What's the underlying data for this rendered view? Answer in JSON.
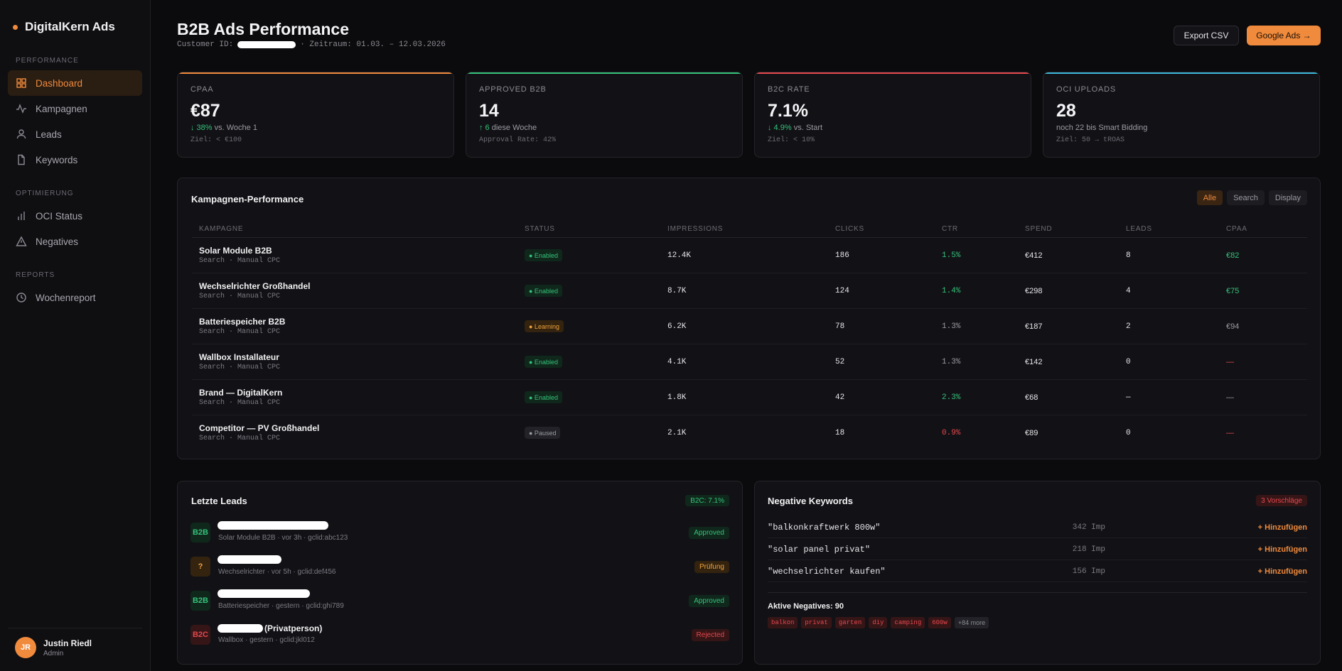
{
  "sidebar": {
    "brand": "DigitalKern Ads",
    "sections": [
      {
        "title": "PERFORMANCE",
        "items": [
          "Dashboard",
          "Kampagnen",
          "Leads",
          "Keywords"
        ]
      },
      {
        "title": "OPTIMIERUNG",
        "items": [
          "OCI Status",
          "Negatives"
        ]
      },
      {
        "title": "REPORTS",
        "items": [
          "Wochenreport"
        ]
      }
    ],
    "active_item": "Dashboard",
    "user": {
      "initials": "JR",
      "name": "Justin Riedl",
      "role": "Admin"
    }
  },
  "header": {
    "title": "B2B Ads Performance",
    "customer_label": "Customer ID:",
    "period": "· Zeitraum: 01.03. – 12.03.2026",
    "export_label": "Export CSV",
    "google_label": "Google Ads →"
  },
  "kpis": [
    {
      "label": "CPAA",
      "value": "€87",
      "delta_arrow": "↓ 38%",
      "delta_text": "vs. Woche 1",
      "note": "Ziel: < €100",
      "color": "#f08a3c"
    },
    {
      "label": "APPROVED B2B",
      "value": "14",
      "delta_arrow": "↑ 6",
      "delta_text": "diese Woche",
      "note": "Approval Rate: 42%",
      "color": "#34c27a"
    },
    {
      "label": "B2C RATE",
      "value": "7.1%",
      "delta_arrow": "↓ 4.9%",
      "delta_text": "vs. Start",
      "note": "Ziel: < 10%",
      "color": "#e5484d"
    },
    {
      "label": "OCI UPLOADS",
      "value": "28",
      "delta_arrow": "",
      "delta_text": "noch 22 bis Smart Bidding",
      "note": "Ziel: 50 → tROAS",
      "color": "#3cb6d9"
    }
  ],
  "campaigns": {
    "title": "Kampagnen-Performance",
    "filters": [
      "Alle",
      "Search",
      "Display"
    ],
    "active_filter": "Alle",
    "columns": [
      "KAMPAGNE",
      "STATUS",
      "IMPRESSIONS",
      "CLICKS",
      "CTR",
      "SPEND",
      "LEADS",
      "CPAA"
    ],
    "rows": [
      {
        "name": "Solar Module B2B",
        "sub": "Search · Manual CPC",
        "status": "● Enabled",
        "impressions": "12.4K",
        "clicks": "186",
        "ctr": "1.5%",
        "spend": "€412",
        "leads": "8",
        "cpaa": "€82"
      },
      {
        "name": "Wechselrichter Großhandel",
        "sub": "Search · Manual CPC",
        "status": "● Enabled",
        "impressions": "8.7K",
        "clicks": "124",
        "ctr": "1.4%",
        "spend": "€298",
        "leads": "4",
        "cpaa": "€75"
      },
      {
        "name": "Batteriespeicher B2B",
        "sub": "Search · Manual CPC",
        "status": "● Learning",
        "impressions": "6.2K",
        "clicks": "78",
        "ctr": "1.3%",
        "spend": "€187",
        "leads": "2",
        "cpaa": "€94"
      },
      {
        "name": "Wallbox Installateur",
        "sub": "Search · Manual CPC",
        "status": "● Enabled",
        "impressions": "4.1K",
        "clicks": "52",
        "ctr": "1.3%",
        "spend": "€142",
        "leads": "0",
        "cpaa": "—"
      },
      {
        "name": "Brand — DigitalKern",
        "sub": "Search · Manual CPC",
        "status": "● Enabled",
        "impressions": "1.8K",
        "clicks": "42",
        "ctr": "2.3%",
        "spend": "€68",
        "leads": "—",
        "cpaa": "—"
      },
      {
        "name": "Competitor — PV Großhandel",
        "sub": "Search · Manual CPC",
        "status": "● Paused",
        "impressions": "2.1K",
        "clicks": "18",
        "ctr": "0.9%",
        "spend": "€89",
        "leads": "0",
        "cpaa": "—"
      }
    ]
  },
  "leads": {
    "title": "Letzte Leads",
    "badge": "B2C: 7.1%",
    "items": [
      {
        "tag": "B2B",
        "name_suffix": "",
        "sub": "Solar Module B2B · vor 3h · gclid:abc123",
        "status": "Approved"
      },
      {
        "tag": "?",
        "name_suffix": "",
        "sub": "Wechselrichter · vor 5h · gclid:def456",
        "status": "Prüfung"
      },
      {
        "tag": "B2B",
        "name_suffix": "",
        "sub": "Batteriespeicher · gestern · gclid:ghi789",
        "status": "Approved"
      },
      {
        "tag": "B2C",
        "name_suffix": "(Privatperson)",
        "sub": "Wallbox · gestern · gclid:jkl012",
        "status": "Rejected"
      }
    ]
  },
  "negatives": {
    "title": "Negative Keywords",
    "badge": "3 Vorschläge",
    "items": [
      {
        "keyword": "\"balkonkraftwerk 800w\"",
        "imp": "342 Imp",
        "action": "+ Hinzufügen"
      },
      {
        "keyword": "\"solar panel privat\"",
        "imp": "218 Imp",
        "action": "+ Hinzufügen"
      },
      {
        "keyword": "\"wechselrichter kaufen\"",
        "imp": "156 Imp",
        "action": "+ Hinzufügen"
      }
    ],
    "active_label": "Aktive Negatives: 90",
    "chips": [
      "balkon",
      "privat",
      "garten",
      "diy",
      "camping",
      "600w",
      "+84 more"
    ]
  }
}
